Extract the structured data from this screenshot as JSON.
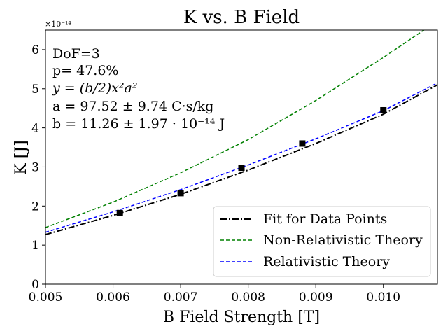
{
  "chart_data": {
    "type": "line",
    "title": "K vs. B Field",
    "xlabel": "B Field Strength [T]",
    "ylabel": "K [J]",
    "y_offset_label": "×10⁻¹⁴",
    "xlim": [
      0.005,
      0.0108
    ],
    "ylim": [
      0,
      6.5
    ],
    "x_ticks": [
      "0.005",
      "0.006",
      "0.007",
      "0.008",
      "0.009",
      "0.010"
    ],
    "x_tick_values": [
      0.005,
      0.006,
      0.007,
      0.008,
      0.009,
      0.01
    ],
    "y_ticks": [
      "0",
      "1",
      "2",
      "3",
      "4",
      "5",
      "6"
    ],
    "y_tick_values": [
      0,
      1,
      2,
      3,
      4,
      5,
      6
    ],
    "grid": false,
    "legend_position": "lower-right",
    "annotations": [
      "DoF=3",
      "p= 47.6%",
      "y = (b/2)x²a²",
      "a = 97.52 ± 9.74 C·s/kg",
      "b = 11.26 ± 1.97 · 10⁻¹⁴ J"
    ],
    "data_points": {
      "x": [
        0.0061,
        0.007,
        0.0079,
        0.0088,
        0.01
      ],
      "y": [
        1.82,
        2.33,
        2.98,
        3.6,
        4.45
      ],
      "marker": "square",
      "color": "#000000"
    },
    "series": [
      {
        "name": "Fit for Data Points",
        "color": "#000000",
        "style": "dash-dot",
        "x": [
          0.005,
          0.006,
          0.007,
          0.008,
          0.009,
          0.01,
          0.0108
        ],
        "y": [
          1.27,
          1.76,
          2.3,
          2.92,
          3.6,
          4.35,
          5.1
        ]
      },
      {
        "name": "Non-Relativistic Theory",
        "color": "#008000",
        "style": "dashed",
        "x": [
          0.005,
          0.006,
          0.007,
          0.008,
          0.009,
          0.01,
          0.0106
        ],
        "y": [
          1.45,
          2.1,
          2.85,
          3.7,
          4.7,
          5.8,
          6.5
        ]
      },
      {
        "name": "Relativistic Theory",
        "color": "#0000ff",
        "style": "dashed",
        "x": [
          0.005,
          0.006,
          0.007,
          0.008,
          0.009,
          0.01,
          0.0108
        ],
        "y": [
          1.33,
          1.85,
          2.42,
          3.05,
          3.72,
          4.44,
          5.15
        ]
      }
    ]
  }
}
